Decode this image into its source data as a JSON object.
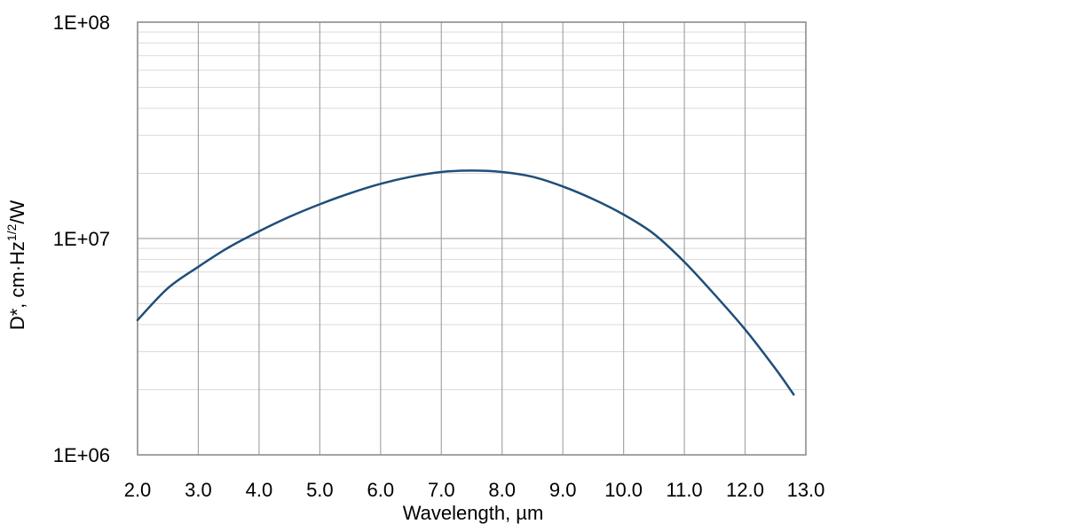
{
  "chart_data": {
    "type": "line",
    "title": "",
    "xlabel": "Wavelength, µm",
    "ylabel": {
      "main": "D*, cm",
      "dot": "·",
      "unit_base": "Hz",
      "unit_exp": "1/2",
      "unit_tail": "/W"
    },
    "xlim": [
      2.0,
      13.0
    ],
    "ylim": [
      1000000,
      100000000
    ],
    "y_scale": "log",
    "grid": true,
    "x_ticks": [
      "2.0",
      "3.0",
      "4.0",
      "5.0",
      "6.0",
      "7.0",
      "8.0",
      "9.0",
      "10.0",
      "11.0",
      "12.0",
      "13.0"
    ],
    "y_ticks": [
      "1E+06",
      "1E+07",
      "1E+08"
    ],
    "series": [
      {
        "color": "#1f4e79",
        "x": [
          2.0,
          2.5,
          3.0,
          3.5,
          4.0,
          4.5,
          5.0,
          5.5,
          6.0,
          6.5,
          7.0,
          7.5,
          8.0,
          8.5,
          9.0,
          9.5,
          10.0,
          10.5,
          11.0,
          11.5,
          12.0,
          12.5,
          12.8
        ],
        "y": [
          4200000,
          5900000,
          7400000,
          9100000,
          10800000,
          12600000,
          14400000,
          16200000,
          17900000,
          19300000,
          20300000,
          20600000,
          20300000,
          19300000,
          17400000,
          15200000,
          12900000,
          10500000,
          7800000,
          5500000,
          3800000,
          2500000,
          1900000
        ]
      }
    ]
  }
}
